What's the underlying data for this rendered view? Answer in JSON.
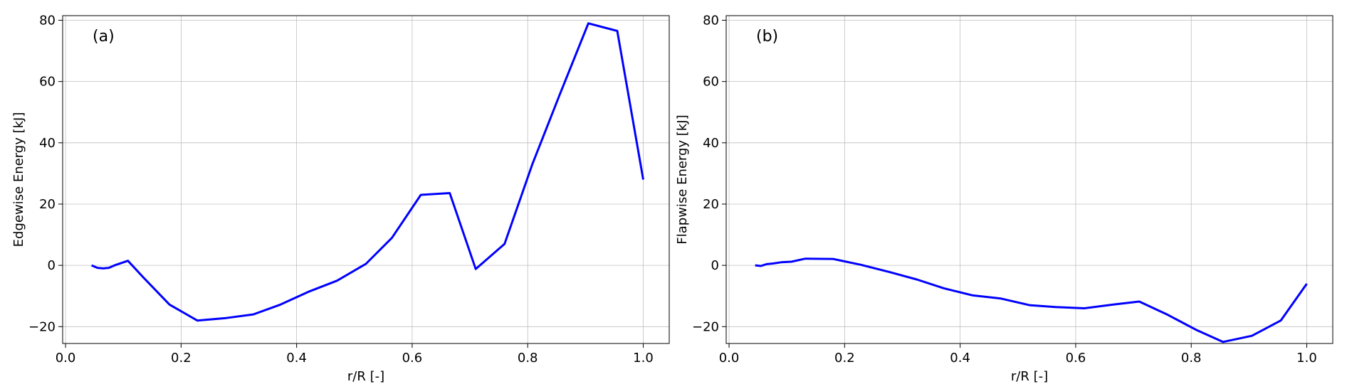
{
  "colors": {
    "line": "#0000ff",
    "grid": "#b0b0b0",
    "frame": "#000000"
  },
  "chart_data": [
    {
      "type": "line",
      "panel_label": "(a)",
      "title": "",
      "xlabel": "r/R [-]",
      "ylabel": "Edgewise Energy [kJ]",
      "xlim": [
        -0.005,
        1.045
      ],
      "ylim": [
        -25.5,
        81.5
      ],
      "xticks": [
        0.0,
        0.2,
        0.4,
        0.6,
        0.8,
        1.0
      ],
      "xtick_labels": [
        "0.0",
        "0.2",
        "0.4",
        "0.6",
        "0.8",
        "1.0"
      ],
      "yticks": [
        -20,
        0,
        20,
        40,
        60,
        80
      ],
      "ytick_labels": [
        "−20",
        "0",
        "20",
        "40",
        "60",
        "80"
      ],
      "grid": true,
      "series": [
        {
          "x": [
            0.045,
            0.055,
            0.065,
            0.075,
            0.085,
            0.108,
            0.135,
            0.18,
            0.228,
            0.278,
            0.325,
            0.372,
            0.422,
            0.47,
            0.52,
            0.565,
            0.615,
            0.665,
            0.71,
            0.76,
            0.808,
            0.855,
            0.905,
            0.955,
            1.0
          ],
          "y": [
            0.0,
            -0.8,
            -1.0,
            -0.8,
            0.0,
            1.5,
            -4.0,
            -12.8,
            -18.0,
            -17.2,
            -16.0,
            -12.8,
            -8.5,
            -5.0,
            0.5,
            9.0,
            23.0,
            23.6,
            -1.2,
            7.0,
            33.0,
            55.5,
            79.0,
            76.5,
            28.0
          ]
        }
      ]
    },
    {
      "type": "line",
      "panel_label": "(b)",
      "title": "",
      "xlabel": "r/R [-]",
      "ylabel": "Flapwise Energy [kJ]",
      "xlim": [
        -0.005,
        1.045
      ],
      "ylim": [
        -25.5,
        81.5
      ],
      "xticks": [
        0.0,
        0.2,
        0.4,
        0.6,
        0.8,
        1.0
      ],
      "xtick_labels": [
        "0.0",
        "0.2",
        "0.4",
        "0.6",
        "0.8",
        "1.0"
      ],
      "yticks": [
        -20,
        0,
        20,
        40,
        60,
        80
      ],
      "ytick_labels": [
        "−20",
        "0",
        "20",
        "40",
        "60",
        "80"
      ],
      "grid": true,
      "series": [
        {
          "x": [
            0.045,
            0.055,
            0.065,
            0.075,
            0.09,
            0.108,
            0.132,
            0.18,
            0.228,
            0.278,
            0.325,
            0.372,
            0.422,
            0.47,
            0.52,
            0.565,
            0.615,
            0.665,
            0.71,
            0.76,
            0.808,
            0.855,
            0.905,
            0.955,
            1.0
          ],
          "y": [
            0.0,
            -0.2,
            0.4,
            0.6,
            1.0,
            1.2,
            2.2,
            2.1,
            0.2,
            -2.2,
            -4.6,
            -7.5,
            -9.8,
            -10.8,
            -13.0,
            -13.6,
            -14.0,
            -12.8,
            -11.8,
            -16.2,
            -21.0,
            -25.0,
            -23.0,
            -18.0,
            -6.0
          ]
        }
      ]
    }
  ]
}
